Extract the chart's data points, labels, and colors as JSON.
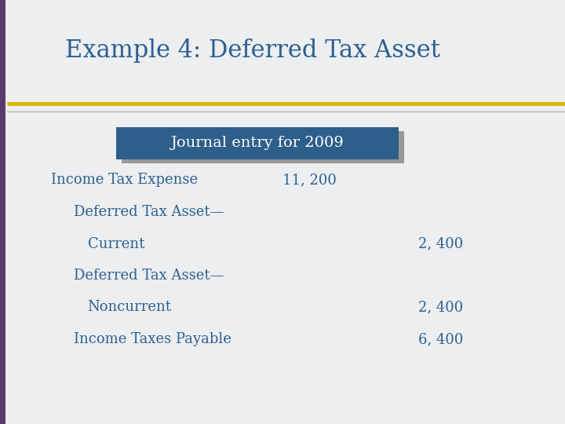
{
  "title": "Example 4: Deferred Tax Asset",
  "title_color": "#2E6090",
  "title_fontsize": 22,
  "background_color": "#ECEEF0",
  "left_bar_color": "#5B3A6E",
  "yellow_line_color": "#D4B800",
  "header_box_color": "#2E5F8A",
  "header_box_shadow_color": "#999999",
  "header_text": "Journal entry for 2009",
  "header_text_color": "#FFFFFF",
  "header_fontsize": 14,
  "entry_color": "#2E6090",
  "entry_fontsize": 13,
  "entries": [
    {
      "label": "Income Tax Expense",
      "indent": 0,
      "debit": "11, 200",
      "credit": ""
    },
    {
      "label": "Deferred Tax Asset—",
      "indent": 1,
      "debit": "",
      "credit": ""
    },
    {
      "label": "Current",
      "indent": 2,
      "debit": "",
      "credit": "2, 400"
    },
    {
      "label": "Deferred Tax Asset—",
      "indent": 1,
      "debit": "",
      "credit": ""
    },
    {
      "label": "Noncurrent",
      "indent": 2,
      "debit": "",
      "credit": "2, 400"
    },
    {
      "label": "Income Taxes Payable",
      "indent": 1,
      "debit": "",
      "credit": "6, 400"
    }
  ]
}
